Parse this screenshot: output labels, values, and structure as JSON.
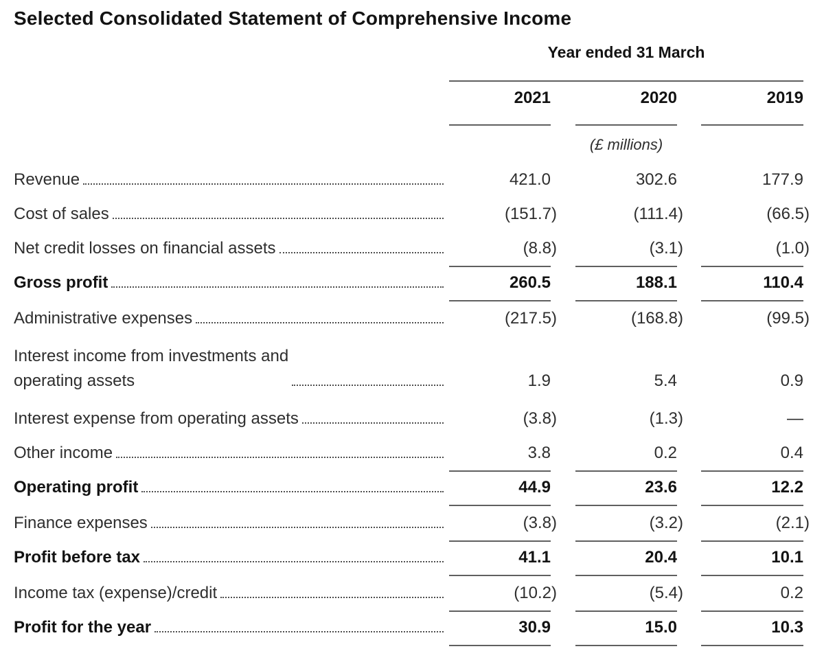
{
  "title": "Selected Consolidated Statement of Comprehensive Income",
  "table": {
    "period_header": "Year ended 31 March",
    "columns": [
      "2021",
      "2020",
      "2019"
    ],
    "units": "(£ millions)",
    "rows": [
      {
        "label": "Revenue",
        "values": [
          "421.0",
          "302.6",
          "177.9"
        ],
        "bold": false,
        "subtotal": false
      },
      {
        "label": "Cost of sales",
        "values": [
          "(151.7)",
          "(111.4)",
          "(66.5)"
        ],
        "bold": false,
        "subtotal": false
      },
      {
        "label": "Net credit losses on financial assets",
        "values": [
          "(8.8)",
          "(3.1)",
          "(1.0)"
        ],
        "bold": false,
        "subtotal": false
      },
      {
        "label": "Gross profit",
        "values": [
          "260.5",
          "188.1",
          "110.4"
        ],
        "bold": true,
        "subtotal": true
      },
      {
        "label": "Administrative expenses",
        "values": [
          "(217.5)",
          "(168.8)",
          "(99.5)"
        ],
        "bold": false,
        "subtotal": false
      },
      {
        "label": "Interest income from investments and\noperating assets",
        "values": [
          "1.9",
          "5.4",
          "0.9"
        ],
        "bold": false,
        "subtotal": false
      },
      {
        "label": "Interest expense from operating assets",
        "values": [
          "(3.8)",
          "(1.3)",
          "—"
        ],
        "bold": false,
        "subtotal": false
      },
      {
        "label": "Other income",
        "values": [
          "3.8",
          "0.2",
          "0.4"
        ],
        "bold": false,
        "subtotal": false
      },
      {
        "label": "Operating profit",
        "values": [
          "44.9",
          "23.6",
          "12.2"
        ],
        "bold": true,
        "subtotal": true
      },
      {
        "label": "Finance expenses",
        "values": [
          "(3.8)",
          "(3.2)",
          "(2.1)"
        ],
        "bold": false,
        "subtotal": false
      },
      {
        "label": "Profit before tax",
        "values": [
          "41.1",
          "20.4",
          "10.1"
        ],
        "bold": true,
        "subtotal": true
      },
      {
        "label": "Income tax (expense)/credit",
        "values": [
          "(10.2)",
          "(5.4)",
          "0.2"
        ],
        "bold": false,
        "subtotal": false
      },
      {
        "label": "Profit for the year",
        "values": [
          "30.9",
          "15.0",
          "10.3"
        ],
        "bold": true,
        "subtotal": true
      }
    ]
  }
}
